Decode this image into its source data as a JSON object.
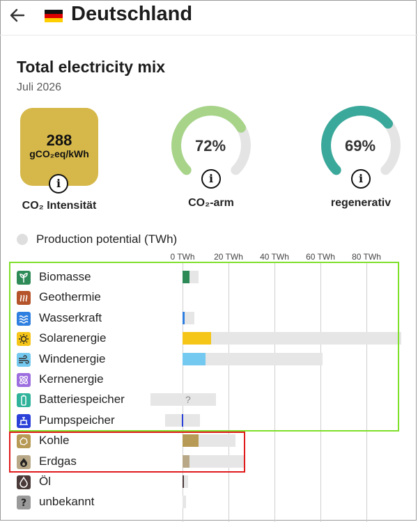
{
  "header": {
    "country": "Deutschland"
  },
  "card": {
    "title": "Total electricity mix",
    "date": "Juli 2026",
    "co2_value": "288",
    "co2_unit": "gCO₂eq/kWh",
    "co2_label": "CO₂ Intensität",
    "co2_color": "#d6b84a",
    "gauges": [
      {
        "value_text": "72%",
        "fraction": 0.72,
        "label": "CO₂-arm",
        "color": "#a8d48a"
      },
      {
        "value_text": "69%",
        "fraction": 0.69,
        "label": "regenerativ",
        "color": "#3aa89a"
      }
    ],
    "info_glyph": "i"
  },
  "legend": {
    "label": "Production potential (TWh)"
  },
  "axis": {
    "ticks": [
      "0 TWh",
      "20 TWh",
      "40 TWh",
      "60 TWh",
      "80 TWh"
    ]
  },
  "chart_data": {
    "type": "bar",
    "xlabel": "TWh",
    "xlim": [
      -15,
      95
    ],
    "categories": [
      "Biomasse",
      "Geothermie",
      "Wasserkraft",
      "Solarenergie",
      "Windenergie",
      "Kernenergie",
      "Batteriespeicher",
      "Pumpspeicher",
      "Kohle",
      "Erdgas",
      "Öl",
      "unbekannt"
    ],
    "series": [
      {
        "values": [
          3,
          0,
          1,
          12.5,
          10,
          0,
          0,
          0,
          7,
          3,
          0.3,
          0
        ]
      },
      {
        "values": [
          7,
          0,
          5,
          95,
          61,
          0,
          14.5,
          7.5,
          23,
          27,
          2.5,
          1.5
        ]
      },
      {
        "values": [
          0,
          0,
          0,
          0,
          0,
          0,
          -14,
          -7.5,
          0,
          0,
          0,
          0
        ]
      }
    ],
    "unknown_marker": "?",
    "colors": {
      "Biomasse": "#2e8b57",
      "Geothermie": "#b5532a",
      "Wasserkraft": "#2f7fe0",
      "Solarenergie": "#f5c518",
      "Windenergie": "#74c9f0",
      "Kernenergie": "#9c6ee0",
      "Batteriespeicher": "#2fb39a",
      "Pumpspeicher": "#2a40d8",
      "Kohle": "#b79a55",
      "Erdgas": "#b8a888",
      "Öl": "#4a3a3a",
      "unbekannt": "#9a9a9a"
    },
    "icons": [
      "sprout-icon",
      "hot-springs-icon",
      "water-waves-icon",
      "sun-icon",
      "wind-icon",
      "atom-icon",
      "battery-icon",
      "pump-storage-icon",
      "coal-icon",
      "gas-flame-icon",
      "oil-drop-icon",
      "question-icon"
    ]
  }
}
